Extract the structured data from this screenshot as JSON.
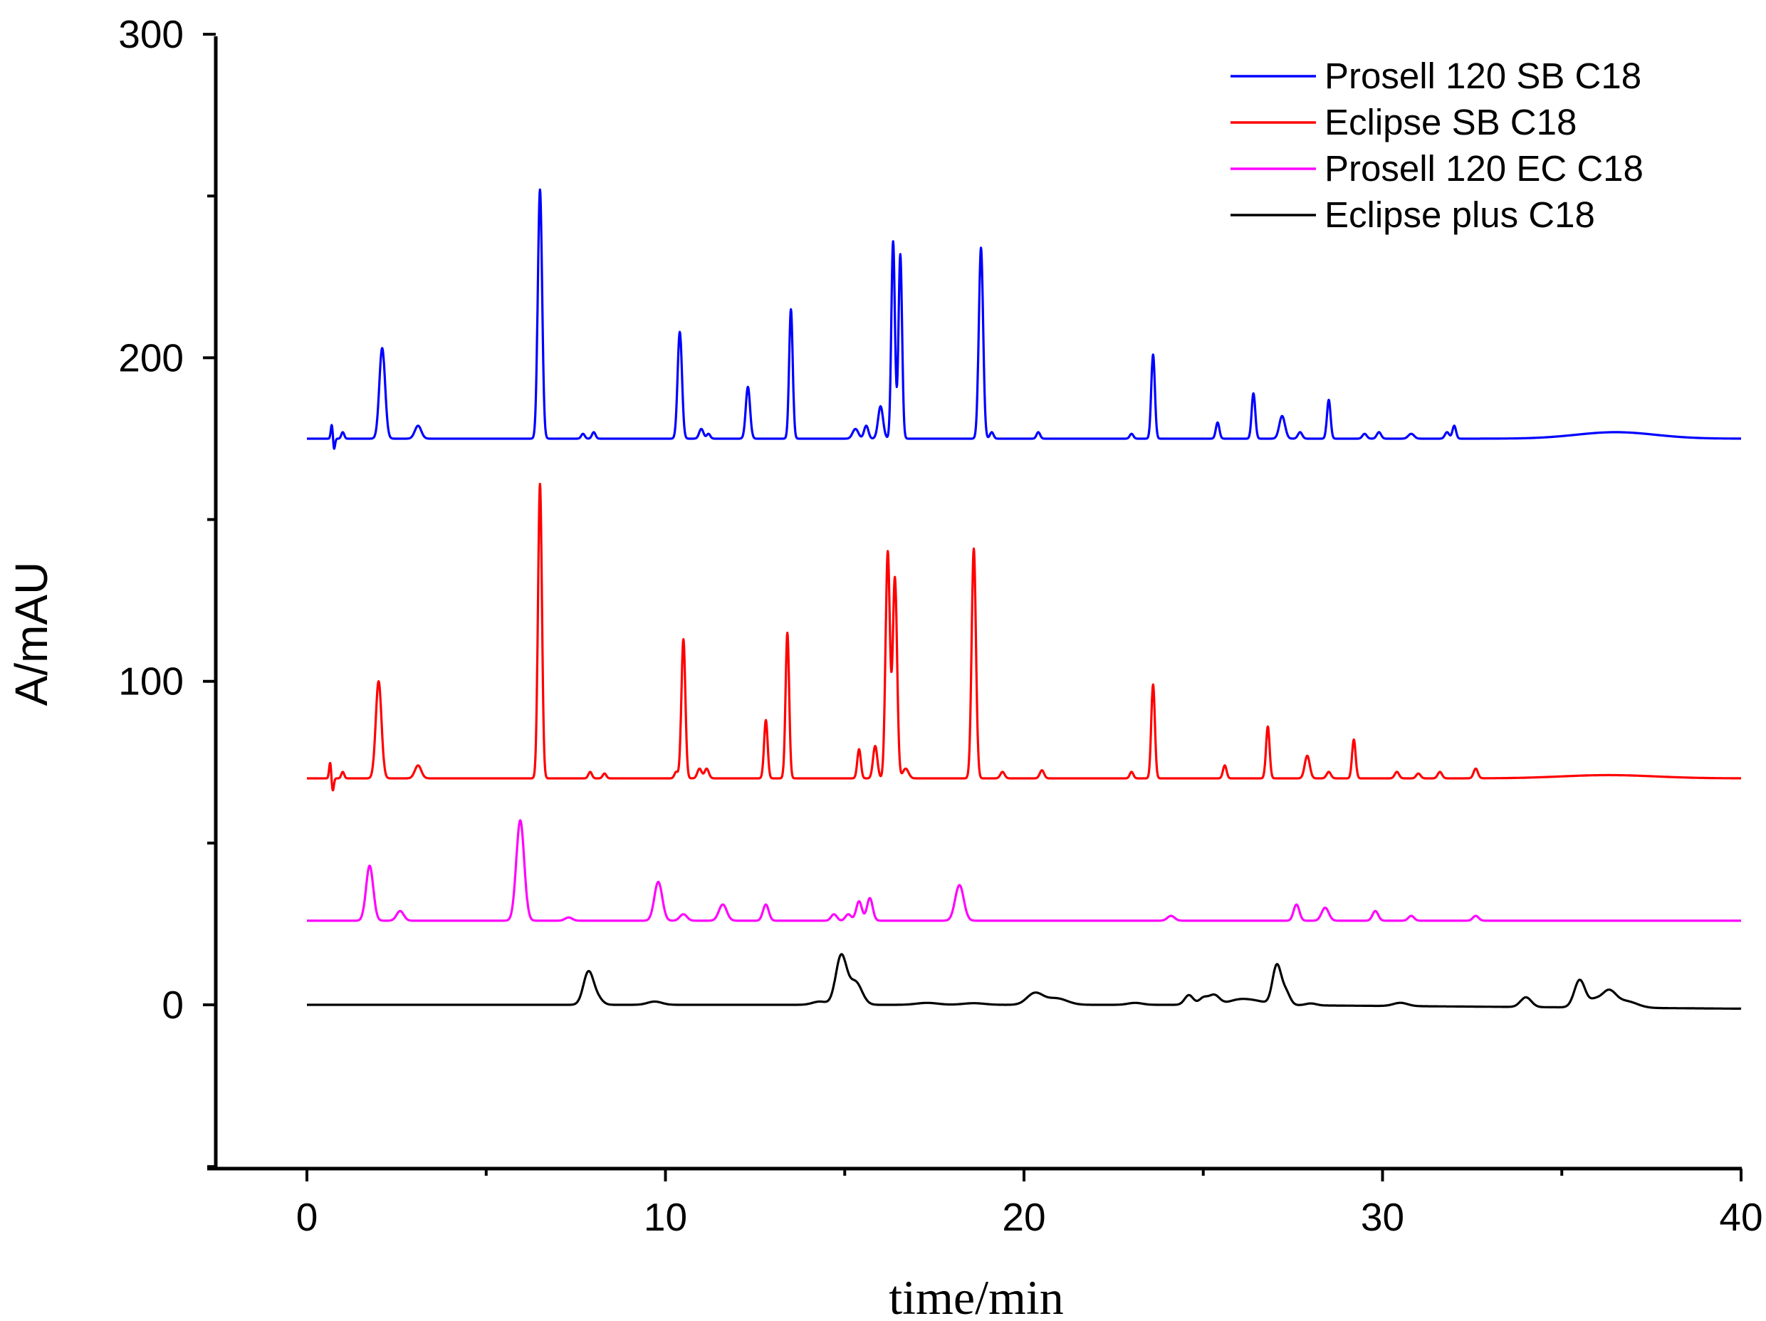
{
  "chart_data": {
    "type": "line",
    "title": "",
    "xlabel": "time/min",
    "ylabel": "A/mAU",
    "xlim": [
      -2.8,
      40
    ],
    "ylim": [
      -50,
      300
    ],
    "x_ticks": [
      0,
      10,
      20,
      30,
      40
    ],
    "y_ticks": [
      0,
      100,
      200,
      300
    ],
    "x_tick_labels": [
      "0",
      "10",
      "20",
      "30",
      "40"
    ],
    "y_tick_labels": [
      "0",
      "100",
      "200",
      "300"
    ],
    "grid": false,
    "legend_position": "top-right",
    "series": [
      {
        "name": "Prosell 120 SB C18",
        "color": "#0000ff",
        "baseline": 175,
        "peaks": [
          [
            0.7,
            5,
            0.03
          ],
          [
            0.75,
            -4,
            0.03
          ],
          [
            1.0,
            2,
            0.04
          ],
          [
            2.1,
            28,
            0.08
          ],
          [
            3.1,
            4,
            0.09
          ],
          [
            6.5,
            77,
            0.06
          ],
          [
            7.7,
            1.5,
            0.05
          ],
          [
            8.0,
            2,
            0.05
          ],
          [
            10.4,
            33,
            0.06
          ],
          [
            11.0,
            3,
            0.06
          ],
          [
            11.2,
            1.5,
            0.05
          ],
          [
            12.3,
            16,
            0.06
          ],
          [
            13.5,
            40,
            0.05
          ],
          [
            15.3,
            3,
            0.08
          ],
          [
            15.6,
            4,
            0.06
          ],
          [
            16.0,
            10,
            0.07
          ],
          [
            16.35,
            61,
            0.05
          ],
          [
            16.55,
            57,
            0.05
          ],
          [
            18.8,
            59,
            0.06
          ],
          [
            19.1,
            2,
            0.05
          ],
          [
            20.4,
            2,
            0.05
          ],
          [
            23.0,
            1.5,
            0.05
          ],
          [
            23.6,
            26,
            0.05
          ],
          [
            25.4,
            5,
            0.05
          ],
          [
            26.4,
            14,
            0.05
          ],
          [
            27.2,
            7,
            0.08
          ],
          [
            27.7,
            2,
            0.06
          ],
          [
            28.5,
            12,
            0.05
          ],
          [
            29.5,
            1.5,
            0.06
          ],
          [
            29.9,
            2,
            0.06
          ],
          [
            30.8,
            1.5,
            0.08
          ],
          [
            31.8,
            2,
            0.06
          ],
          [
            32.0,
            4,
            0.05
          ],
          [
            36.5,
            2,
            1.1
          ]
        ]
      },
      {
        "name": "Eclipse SB C18",
        "color": "#ff0000",
        "baseline": 70,
        "peaks": [
          [
            0.65,
            5,
            0.03
          ],
          [
            0.72,
            -4,
            0.03
          ],
          [
            1.0,
            2,
            0.04
          ],
          [
            2.0,
            30,
            0.08
          ],
          [
            3.1,
            4,
            0.09
          ],
          [
            6.5,
            91,
            0.055
          ],
          [
            7.9,
            2,
            0.05
          ],
          [
            8.3,
            1.5,
            0.05
          ],
          [
            10.3,
            2,
            0.05
          ],
          [
            10.5,
            43,
            0.055
          ],
          [
            10.95,
            3,
            0.06
          ],
          [
            11.15,
            3,
            0.06
          ],
          [
            12.8,
            18,
            0.05
          ],
          [
            13.4,
            45,
            0.05
          ],
          [
            15.4,
            9,
            0.05
          ],
          [
            15.85,
            10,
            0.06
          ],
          [
            16.2,
            70,
            0.06
          ],
          [
            16.4,
            62,
            0.06
          ],
          [
            16.7,
            3,
            0.08
          ],
          [
            18.6,
            71,
            0.06
          ],
          [
            19.4,
            2,
            0.06
          ],
          [
            20.5,
            2.5,
            0.06
          ],
          [
            23.0,
            2,
            0.05
          ],
          [
            23.6,
            29,
            0.05
          ],
          [
            25.6,
            4,
            0.05
          ],
          [
            26.8,
            16,
            0.05
          ],
          [
            27.9,
            7,
            0.07
          ],
          [
            28.5,
            2,
            0.06
          ],
          [
            29.2,
            12,
            0.05
          ],
          [
            30.4,
            2,
            0.06
          ],
          [
            31.0,
            1.5,
            0.06
          ],
          [
            31.6,
            2,
            0.06
          ],
          [
            32.6,
            3,
            0.06
          ],
          [
            36.3,
            1,
            1.3
          ]
        ]
      },
      {
        "name": "Prosell 120 EC C18",
        "color": "#ff00ff",
        "baseline": 26,
        "peaks": [
          [
            1.75,
            17,
            0.1
          ],
          [
            2.6,
            3,
            0.1
          ],
          [
            5.95,
            31,
            0.11
          ],
          [
            7.3,
            1,
            0.1
          ],
          [
            9.8,
            12,
            0.11
          ],
          [
            10.5,
            2,
            0.1
          ],
          [
            11.6,
            5,
            0.11
          ],
          [
            12.8,
            5,
            0.08
          ],
          [
            14.7,
            2,
            0.08
          ],
          [
            15.1,
            2,
            0.08
          ],
          [
            15.4,
            6,
            0.08
          ],
          [
            15.7,
            7,
            0.08
          ],
          [
            18.2,
            11,
            0.12
          ],
          [
            24.1,
            1.5,
            0.1
          ],
          [
            27.6,
            5,
            0.08
          ],
          [
            28.4,
            4,
            0.1
          ],
          [
            29.8,
            3,
            0.08
          ],
          [
            30.8,
            1.5,
            0.08
          ],
          [
            32.6,
            1.5,
            0.08
          ]
        ]
      },
      {
        "name": "Eclipse plus C18",
        "color": "#000000",
        "baseline": 0,
        "peaks": [
          [
            7.85,
            10,
            0.14
          ],
          [
            8.1,
            2,
            0.14
          ],
          [
            9.7,
            1,
            0.2
          ],
          [
            14.3,
            1,
            0.2
          ],
          [
            14.9,
            15,
            0.15
          ],
          [
            15.3,
            7,
            0.18
          ],
          [
            17.3,
            0.6,
            0.3
          ],
          [
            18.6,
            0.5,
            0.3
          ],
          [
            20.3,
            3.5,
            0.22
          ],
          [
            20.9,
            2,
            0.3
          ],
          [
            23.1,
            0.6,
            0.2
          ],
          [
            24.6,
            3,
            0.12
          ],
          [
            25.0,
            2,
            0.12
          ],
          [
            25.3,
            3,
            0.15
          ],
          [
            26.0,
            1.5,
            0.3
          ],
          [
            26.5,
            1,
            0.3
          ],
          [
            27.05,
            12,
            0.12
          ],
          [
            27.3,
            4,
            0.12
          ],
          [
            28.0,
            0.6,
            0.15
          ],
          [
            30.5,
            1,
            0.2
          ],
          [
            34.0,
            3,
            0.15
          ],
          [
            35.5,
            8.5,
            0.15
          ],
          [
            35.9,
            2,
            0.15
          ],
          [
            36.3,
            5,
            0.2
          ],
          [
            36.8,
            2,
            0.3
          ]
        ]
      }
    ]
  }
}
